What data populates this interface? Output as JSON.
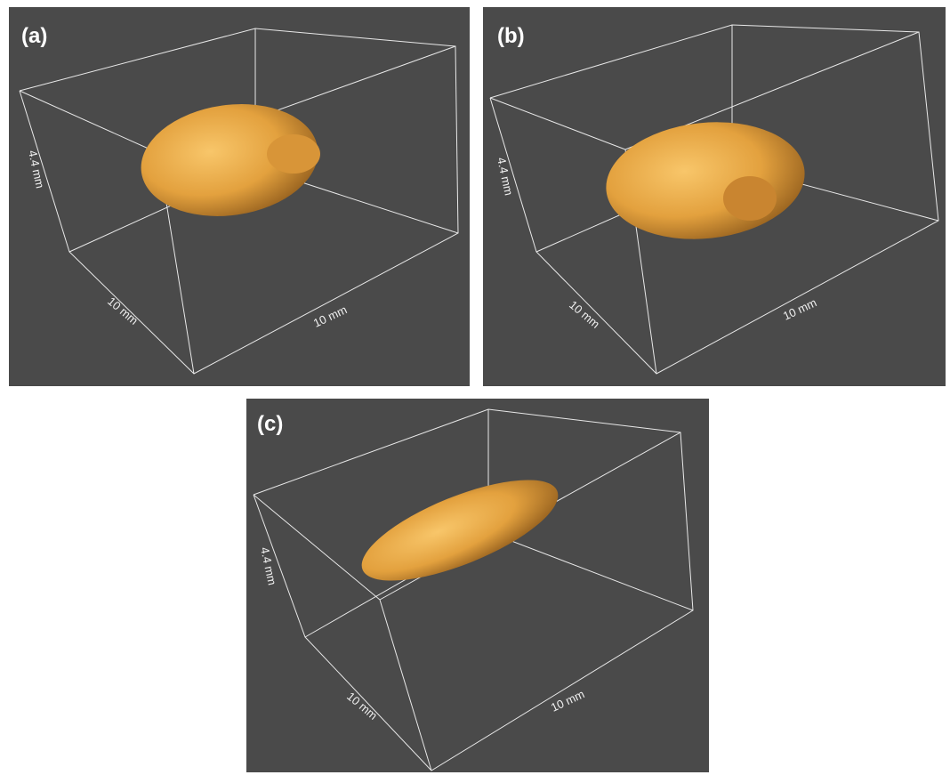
{
  "panels": [
    {
      "label": "(a)",
      "height_label": "4.4 mm",
      "depth_label": "10 mm",
      "width_label": "10 mm"
    },
    {
      "label": "(b)",
      "height_label": "4.4 mm",
      "depth_label": "10 mm",
      "width_label": "10 mm"
    },
    {
      "label": "(c)",
      "height_label": "4.4 mm",
      "depth_label": "10 mm",
      "width_label": "10 mm"
    }
  ]
}
